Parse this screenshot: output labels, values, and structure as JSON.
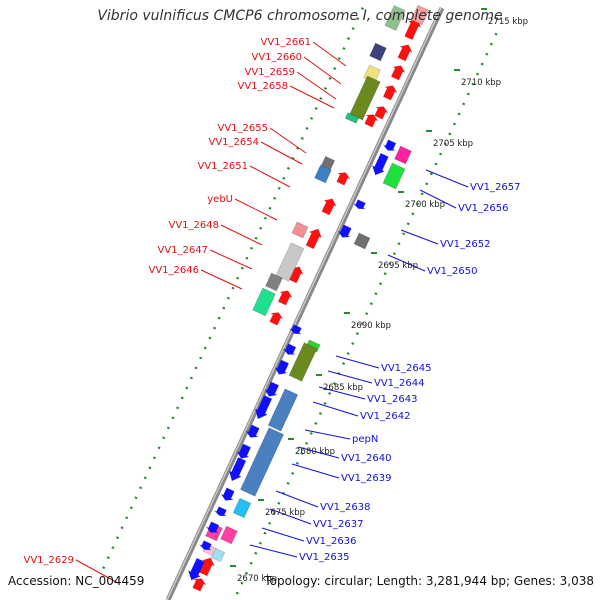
{
  "title": "Vibrio vulnificus CMCP6 chromosome I, complete genome",
  "footer": {
    "accession": "Accession: NC_004459",
    "summary": "Topology: circular; Length: 3,281,944 bp; Genes: 3,038"
  },
  "colors": {
    "forward_gene": "#ff0000",
    "reverse_gene": "#0000ff",
    "backbone": "#888888",
    "tick_marks": "#2a8a2a",
    "left_label": "#e01010",
    "right_label": "#1010e0"
  },
  "ticks": [
    "2670 kbp",
    "2675 kbp",
    "2680 kbp",
    "2685 kbp",
    "2690 kbp",
    "2695 kbp",
    "2700 kbp",
    "2705 kbp",
    "2710 kbp",
    "2715 kbp"
  ],
  "left_labels": [
    "VV1_2661",
    "VV1_2660",
    "VV1_2659",
    "VV1_2658",
    "VV1_2655",
    "VV1_2654",
    "VV1_2651",
    "yebU",
    "VV1_2648",
    "VV1_2647",
    "VV1_2646",
    "VV1_2629"
  ],
  "right_labels": [
    "VV1_2657",
    "VV1_2656",
    "VV1_2652",
    "VV1_2650",
    "VV1_2645",
    "VV1_2644",
    "VV1_2643",
    "VV1_2642",
    "pepN",
    "VV1_2640",
    "VV1_2639",
    "VV1_2638",
    "VV1_2637",
    "VV1_2636",
    "VV1_2635"
  ]
}
